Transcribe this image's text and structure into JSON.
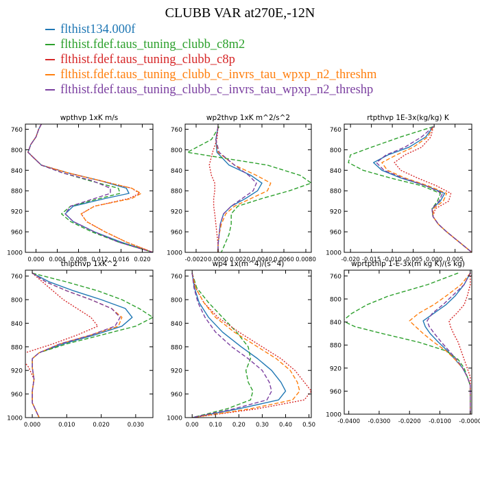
{
  "title": "CLUBB VAR at270E,-12N",
  "series": [
    {
      "name": "flthist134.000f",
      "color": "#1f77b4",
      "dash": ""
    },
    {
      "name": "flthist.fdef.taus_tuning_clubb_c8m2",
      "color": "#2ca02c",
      "dash": "6,3"
    },
    {
      "name": "flthist.fdef.taus_tuning_clubb_c8p",
      "color": "#d62728",
      "dash": "2,2"
    },
    {
      "name": "flthist.fdef.taus_tuning_clubb_c_invrs_tau_wpxp_n2_threshm",
      "color": "#ff7f0e",
      "dash": "6,3"
    },
    {
      "name": "flthist.fdef.taus_tuning_clubb_c_invrs_tau_wpxp_n2_threshp",
      "color": "#7b3fa0",
      "dash": "6,3"
    }
  ],
  "chart_data": [
    {
      "type": "line",
      "title": "wpthvp  1xK m/s",
      "xlim": [
        -0.002,
        0.022
      ],
      "ylim": [
        1000,
        750
      ],
      "xticks": [
        0.0,
        0.004,
        0.008,
        0.012,
        0.016,
        0.02
      ],
      "xtick_labels": [
        "0.000",
        "0.004",
        "0.008",
        "0.012",
        "0.016",
        "0.020"
      ],
      "yticks": [
        760,
        800,
        840,
        880,
        920,
        960,
        1000
      ],
      "y": [
        750,
        760,
        775,
        790,
        805,
        815,
        830,
        845,
        860,
        875,
        885,
        895,
        910,
        925,
        940,
        960,
        980,
        1000
      ],
      "series": [
        [
          0.001,
          0.0005,
          0.0,
          -0.001,
          -0.0015,
          -0.0005,
          0.001,
          0.006,
          0.012,
          0.017,
          0.0175,
          0.013,
          0.007,
          0.0055,
          0.007,
          0.011,
          0.016,
          0.022
        ],
        [
          0.001,
          0.0005,
          0.0,
          -0.001,
          -0.0015,
          -0.0005,
          0.001,
          0.005,
          0.01,
          0.0155,
          0.0158,
          0.012,
          0.0065,
          0.0048,
          0.0065,
          0.0105,
          0.0155,
          0.022
        ],
        [
          0.001,
          0.0005,
          0.0,
          -0.001,
          -0.0015,
          -0.0005,
          0.001,
          0.006,
          0.012,
          0.018,
          0.0195,
          0.0175,
          0.011,
          0.0085,
          0.0095,
          0.013,
          0.017,
          0.022
        ],
        [
          0.001,
          0.0005,
          0.0,
          -0.001,
          -0.0015,
          -0.0005,
          0.001,
          0.006,
          0.012,
          0.018,
          0.0198,
          0.018,
          0.011,
          0.0085,
          0.0095,
          0.013,
          0.017,
          0.022
        ],
        [
          0.001,
          0.0005,
          0.0,
          -0.001,
          -0.0015,
          -0.0005,
          0.001,
          0.005,
          0.0105,
          0.014,
          0.014,
          0.011,
          0.0065,
          0.0055,
          0.007,
          0.011,
          0.0155,
          0.022
        ]
      ]
    },
    {
      "type": "line",
      "title": "wp2thvp  1xK m^2/s^2",
      "xlim": [
        -0.003,
        0.0085
      ],
      "ylim": [
        1000,
        750
      ],
      "xticks": [
        -0.002,
        0.0,
        0.002,
        0.004,
        0.006,
        0.008
      ],
      "xtick_labels": [
        "-0.0020",
        "0.0000",
        "0.0020",
        "0.0040",
        "0.0060",
        "0.0080"
      ],
      "yticks": [
        760,
        800,
        840,
        880,
        920,
        960,
        1000
      ],
      "y": [
        755,
        780,
        805,
        830,
        850,
        865,
        880,
        895,
        910,
        925,
        945,
        965,
        985,
        1000
      ],
      "series": [
        [
          0.0,
          -0.0002,
          -0.0001,
          0.001,
          0.003,
          0.004,
          0.0036,
          0.0025,
          0.0012,
          0.0005,
          0.0002,
          0.0001,
          0.0,
          0.0
        ],
        [
          0.0001,
          -0.0006,
          -0.0028,
          0.0045,
          0.0075,
          0.0085,
          0.0065,
          0.004,
          0.0018,
          0.0012,
          0.0012,
          0.001,
          0.0006,
          0.0003
        ],
        [
          0.0,
          -0.0001,
          -0.0005,
          -0.0008,
          -0.0006,
          -0.0003,
          -0.0003,
          -0.0004,
          -0.0004,
          -0.0003,
          -0.0002,
          -0.0001,
          0.0,
          0.0
        ],
        [
          0.0,
          -0.0002,
          0.0,
          0.0015,
          0.0035,
          0.0048,
          0.0045,
          0.003,
          0.0015,
          0.0007,
          0.0003,
          0.0001,
          0.0,
          0.0
        ],
        [
          0.0,
          -0.0002,
          0.0001,
          0.0015,
          0.0028,
          0.0035,
          0.0032,
          0.0022,
          0.0012,
          0.0005,
          0.0002,
          0.0001,
          0.0,
          0.0
        ]
      ]
    },
    {
      "type": "line",
      "title": "rtpthvp  1E-3x(kg/kg) K",
      "xlim": [
        -0.0215,
        0.009
      ],
      "ylim": [
        1000,
        750
      ],
      "xticks": [
        -0.02,
        -0.015,
        -0.01,
        -0.005,
        0.0,
        0.005
      ],
      "xtick_labels": [
        "-0.020",
        "-0.015",
        "-0.010",
        "-0.005",
        "0.000",
        "0.005"
      ],
      "yticks": [
        760,
        800,
        840,
        880,
        920,
        960,
        1000
      ],
      "y": [
        755,
        775,
        795,
        810,
        825,
        840,
        855,
        870,
        885,
        900,
        915,
        930,
        945,
        960,
        980,
        1000
      ],
      "series": [
        [
          -0.0002,
          -0.002,
          -0.006,
          -0.011,
          -0.0145,
          -0.0125,
          -0.008,
          -0.002,
          0.0025,
          0.0015,
          -0.0005,
          -0.0003,
          0.001,
          0.003,
          0.006,
          0.009
        ],
        [
          -0.0002,
          -0.008,
          -0.015,
          -0.02,
          -0.0205,
          -0.017,
          -0.0105,
          -0.003,
          0.0015,
          0.0008,
          -0.0005,
          -0.0003,
          0.001,
          0.003,
          0.006,
          0.009
        ],
        [
          -0.0002,
          -0.0008,
          -0.003,
          -0.007,
          -0.0095,
          -0.008,
          -0.004,
          0.0005,
          0.004,
          0.0035,
          0.0003,
          -0.0003,
          0.001,
          0.003,
          0.006,
          0.009
        ],
        [
          -0.0002,
          -0.0015,
          -0.005,
          -0.009,
          -0.0125,
          -0.0112,
          -0.007,
          -0.0015,
          0.003,
          0.0022,
          -0.0002,
          -0.0003,
          0.001,
          0.003,
          0.006,
          0.009
        ],
        [
          -0.0002,
          -0.003,
          -0.007,
          -0.0115,
          -0.0138,
          -0.012,
          -0.0075,
          -0.002,
          0.002,
          0.0012,
          -0.0005,
          -0.0003,
          0.001,
          0.003,
          0.006,
          0.009
        ]
      ]
    },
    {
      "type": "line",
      "title": "thlpthvp  1xK^2",
      "xlim": [
        -0.002,
        0.035
      ],
      "ylim": [
        1000,
        750
      ],
      "xticks": [
        0.0,
        0.01,
        0.02,
        0.03
      ],
      "xtick_labels": [
        "0.000",
        "0.010",
        "0.020",
        "0.030"
      ],
      "yticks": [
        760,
        800,
        840,
        880,
        920,
        960,
        1000
      ],
      "y": [
        755,
        770,
        785,
        800,
        815,
        830,
        845,
        860,
        875,
        890,
        900,
        915,
        935,
        955,
        975,
        1000
      ],
      "series": [
        [
          0.0,
          0.005,
          0.012,
          0.02,
          0.027,
          0.029,
          0.026,
          0.018,
          0.009,
          0.002,
          0.0,
          0.0,
          0.0005,
          0.0,
          0.0,
          0.002
        ],
        [
          0.0,
          0.01,
          0.019,
          0.026,
          0.031,
          0.035,
          0.03,
          0.02,
          0.01,
          0.002,
          0.0,
          0.0,
          0.0005,
          0.0,
          0.0,
          0.002
        ],
        [
          0.0,
          0.003,
          0.006,
          0.009,
          0.013,
          0.017,
          0.019,
          0.013,
          0.006,
          -0.002,
          -0.003,
          -0.001,
          0.0005,
          0.0,
          0.0,
          0.002
        ],
        [
          0.0,
          0.004,
          0.01,
          0.017,
          0.023,
          0.026,
          0.025,
          0.017,
          0.008,
          0.002,
          0.0,
          0.0,
          0.0005,
          0.0,
          0.0,
          0.002
        ],
        [
          0.0,
          0.004,
          0.01,
          0.017,
          0.023,
          0.0255,
          0.024,
          0.017,
          0.008,
          0.002,
          0.0,
          0.0,
          0.0005,
          0.0,
          0.0,
          0.002
        ]
      ]
    },
    {
      "type": "line",
      "title": "wp4  1x(m^4)/(s^4)",
      "xlim": [
        -0.03,
        0.51
      ],
      "ylim": [
        1000,
        750
      ],
      "xticks": [
        0.0,
        0.1,
        0.2,
        0.3,
        0.4,
        0.5
      ],
      "xtick_labels": [
        "0.00",
        "0.10",
        "0.20",
        "0.30",
        "0.40",
        "0.50"
      ],
      "yticks": [
        760,
        800,
        840,
        880,
        920,
        960,
        1000
      ],
      "y": [
        755,
        780,
        805,
        830,
        855,
        880,
        900,
        920,
        940,
        955,
        970,
        985,
        1000
      ],
      "series": [
        [
          0.0,
          0.01,
          0.03,
          0.07,
          0.13,
          0.21,
          0.28,
          0.34,
          0.38,
          0.4,
          0.37,
          0.2,
          0.0
        ],
        [
          0.0,
          0.02,
          0.07,
          0.13,
          0.19,
          0.24,
          0.25,
          0.23,
          0.24,
          0.26,
          0.25,
          0.15,
          0.0
        ],
        [
          0.0,
          0.015,
          0.05,
          0.11,
          0.2,
          0.3,
          0.38,
          0.44,
          0.48,
          0.51,
          0.48,
          0.28,
          0.0
        ],
        [
          0.0,
          0.015,
          0.05,
          0.1,
          0.18,
          0.28,
          0.36,
          0.42,
          0.45,
          0.46,
          0.43,
          0.25,
          0.0
        ],
        [
          0.0,
          0.008,
          0.025,
          0.055,
          0.1,
          0.17,
          0.24,
          0.3,
          0.33,
          0.34,
          0.32,
          0.18,
          0.0
        ]
      ]
    },
    {
      "type": "line",
      "title": "wprtpthlp  1-E-3x(m kg K)/(s kg)",
      "xlim": [
        -0.0415,
        0.0005
      ],
      "ylim": [
        1000,
        750
      ],
      "xticks": [
        -0.04,
        -0.03,
        -0.02,
        -0.01,
        0.0
      ],
      "xtick_labels": [
        "-0.0400",
        "-0.0300",
        "-0.0200",
        "-0.0100",
        "-0.0000"
      ],
      "yticks": [
        760,
        800,
        840,
        880,
        920,
        960,
        1000
      ],
      "y": [
        755,
        775,
        795,
        810,
        825,
        838,
        848,
        860,
        875,
        890,
        905,
        920,
        935,
        950,
        970,
        1000
      ],
      "series": [
        [
          0.0,
          -0.002,
          -0.005,
          -0.008,
          -0.012,
          -0.0155,
          -0.0148,
          -0.0132,
          -0.0105,
          -0.0075,
          -0.005,
          -0.0025,
          -0.001,
          0.0,
          0.0,
          0.0
        ],
        [
          -0.004,
          -0.014,
          -0.027,
          -0.034,
          -0.039,
          -0.042,
          -0.038,
          -0.029,
          -0.017,
          -0.008,
          -0.004,
          -0.002,
          -0.001,
          0.0,
          0.0,
          0.0
        ],
        [
          0.0,
          0.0,
          -0.001,
          -0.002,
          -0.0045,
          -0.007,
          -0.0065,
          -0.0055,
          -0.004,
          -0.003,
          -0.002,
          -0.001,
          0.0,
          0.0,
          0.0,
          0.0
        ],
        [
          0.0,
          -0.003,
          -0.008,
          -0.012,
          -0.017,
          -0.02,
          -0.018,
          -0.0155,
          -0.012,
          -0.008,
          -0.005,
          -0.0025,
          -0.001,
          0.0,
          0.0,
          0.0
        ],
        [
          0.0,
          -0.002,
          -0.006,
          -0.009,
          -0.0125,
          -0.0142,
          -0.0135,
          -0.0118,
          -0.0095,
          -0.007,
          -0.0045,
          -0.0025,
          -0.001,
          0.0,
          0.0,
          0.0
        ]
      ]
    }
  ]
}
